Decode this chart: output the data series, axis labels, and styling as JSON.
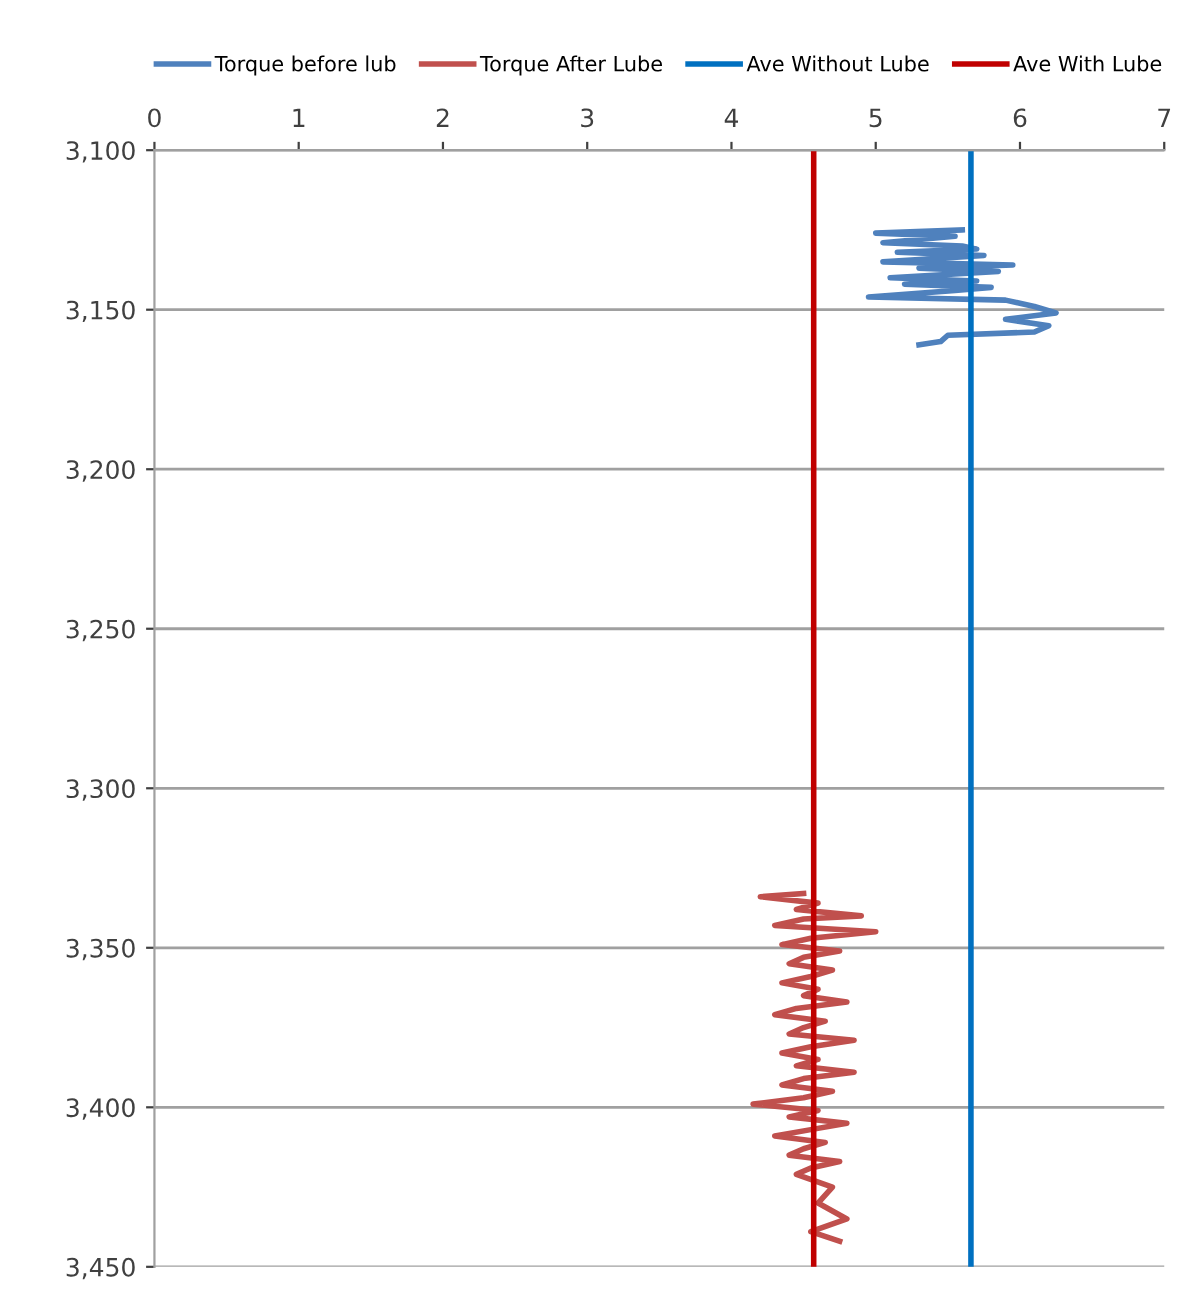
{
  "chart_data": {
    "type": "line",
    "xlim": [
      0,
      7
    ],
    "xticks": [
      0,
      1,
      2,
      3,
      4,
      5,
      6,
      7
    ],
    "ylim": [
      3450,
      3100
    ],
    "yticks": [
      {
        "value": 3100,
        "label": "3,100"
      },
      {
        "value": 3150,
        "label": "3,150"
      },
      {
        "value": 3200,
        "label": "3,200"
      },
      {
        "value": 3250,
        "label": "3,250"
      },
      {
        "value": 3300,
        "label": "3,300"
      },
      {
        "value": 3350,
        "label": "3,350"
      },
      {
        "value": 3400,
        "label": "3,400"
      },
      {
        "value": 3450,
        "label": "3,450"
      }
    ],
    "grid": "y",
    "legend": "top",
    "series": [
      {
        "name": "Torque before lub",
        "color": "#4f81bd",
        "x": [
          5.6,
          5.0,
          5.55,
          5.05,
          5.6,
          5.7,
          5.15,
          5.75,
          5.05,
          5.95,
          5.3,
          5.85,
          5.1,
          5.7,
          5.2,
          5.8,
          5.55,
          4.95,
          5.9,
          6.1,
          6.25,
          5.9,
          6.2,
          6.1,
          5.5,
          5.45,
          5.3
        ],
        "values": [
          3125,
          3126,
          3127,
          3129,
          3130,
          3131,
          3132,
          3133,
          3135,
          3136,
          3137,
          3138,
          3140,
          3141,
          3142,
          3143,
          3144,
          3146,
          3147,
          3149,
          3151,
          3153,
          3155,
          3157,
          3158,
          3160,
          3161
        ]
      },
      {
        "name": "Torque After Lube",
        "color": "#c0504d",
        "x": [
          4.5,
          4.2,
          4.6,
          4.45,
          4.9,
          4.5,
          4.3,
          5.0,
          4.55,
          4.35,
          4.75,
          4.5,
          4.4,
          4.7,
          4.55,
          4.35,
          4.6,
          4.5,
          4.8,
          4.45,
          4.3,
          4.65,
          4.5,
          4.4,
          4.85,
          4.55,
          4.35,
          4.6,
          4.45,
          4.85,
          4.5,
          4.35,
          4.7,
          4.5,
          4.15,
          4.6,
          4.4,
          4.8,
          4.55,
          4.3,
          4.65,
          4.5,
          4.4,
          4.75,
          4.55,
          4.45,
          4.7,
          4.6,
          4.8,
          4.55,
          4.75
        ],
        "values": [
          3333,
          3334,
          3336,
          3338,
          3340,
          3341,
          3343,
          3345,
          3347,
          3349,
          3351,
          3353,
          3355,
          3357,
          3359,
          3361,
          3363,
          3365,
          3367,
          3369,
          3371,
          3373,
          3375,
          3377,
          3379,
          3381,
          3383,
          3385,
          3387,
          3389,
          3391,
          3393,
          3395,
          3397,
          3399,
          3401,
          3403,
          3405,
          3407,
          3409,
          3411,
          3413,
          3415,
          3417,
          3419,
          3421,
          3425,
          3430,
          3435,
          3439,
          3442
        ]
      },
      {
        "name": "Ave Without Lube",
        "color": "#0070c0",
        "x": [
          5.66,
          5.66
        ],
        "values": [
          3100,
          3450
        ]
      },
      {
        "name": "Ave With Lube",
        "color": "#c00000",
        "x": [
          4.57,
          4.57
        ],
        "values": [
          3100,
          3450
        ]
      }
    ]
  }
}
